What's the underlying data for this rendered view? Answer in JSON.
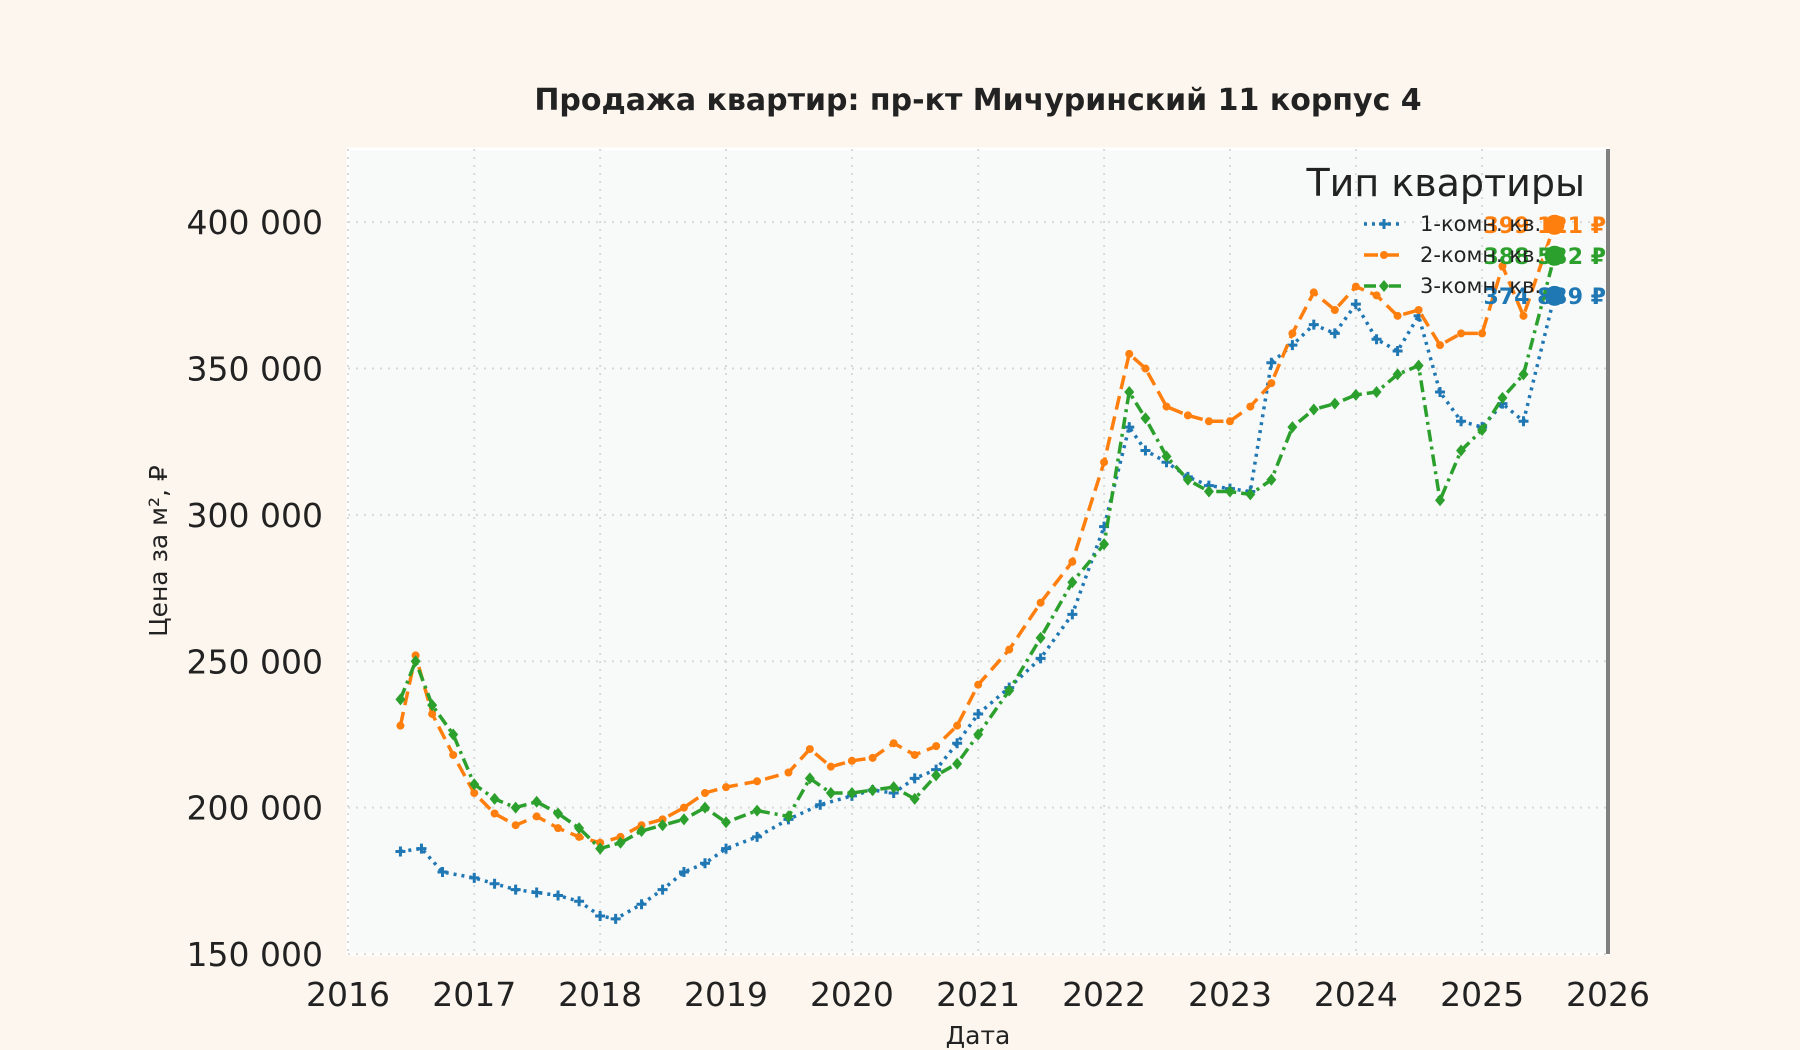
{
  "chart_data": {
    "type": "line",
    "title": "Продажа квартир: пр-кт Мичуринский 11 корпус 4",
    "xlabel": "Дата",
    "ylabel": "Цена за м², ₽",
    "xlim": [
      "2016-01-01",
      "2026-01-01"
    ],
    "ylim": [
      150000,
      425000
    ],
    "x_ticks": [
      "2016",
      "2017",
      "2018",
      "2019",
      "2020",
      "2021",
      "2022",
      "2023",
      "2024",
      "2025",
      "2026"
    ],
    "y_ticks": [
      150000,
      200000,
      250000,
      300000,
      350000,
      400000
    ],
    "y_tick_labels": [
      "150 000",
      "200 000",
      "250 000",
      "300 000",
      "350 000",
      "400 000"
    ],
    "grid": true,
    "legend": {
      "title": "Тип квартиры",
      "placement": "top-right",
      "entries": [
        "1-комн. кв.",
        "2-комн. кв.",
        "3-комн. кв."
      ]
    },
    "vline_date": "2026-01-01",
    "series": [
      {
        "name": "1-комн. кв.",
        "color": "#1f77b4",
        "style": "dotted",
        "marker": "plus",
        "end_label": "374 839 ₽",
        "last_point": {
          "x": "2025-07-30",
          "y": 374839
        },
        "x": [
          "2016-06-01",
          "2016-08-01",
          "2016-10-01",
          "2017-01-01",
          "2017-03-01",
          "2017-05-01",
          "2017-07-01",
          "2017-09-01",
          "2017-11-01",
          "2018-01-01",
          "2018-02-15",
          "2018-05-01",
          "2018-07-01",
          "2018-09-01",
          "2018-11-01",
          "2019-01-01",
          "2019-04-01",
          "2019-07-01",
          "2019-10-01",
          "2020-01-01",
          "2020-03-01",
          "2020-05-01",
          "2020-07-01",
          "2020-09-01",
          "2020-11-01",
          "2021-01-01",
          "2021-04-01",
          "2021-07-01",
          "2021-10-01",
          "2022-01-01",
          "2022-03-15",
          "2022-05-01",
          "2022-07-01",
          "2022-09-01",
          "2022-11-01",
          "2023-01-01",
          "2023-03-01",
          "2023-05-01",
          "2023-07-01",
          "2023-09-01",
          "2023-11-01",
          "2024-01-01",
          "2024-03-01",
          "2024-05-01",
          "2024-07-01",
          "2024-09-01",
          "2024-11-01",
          "2025-01-01",
          "2025-03-01",
          "2025-05-01",
          "2025-07-30"
        ],
        "y": [
          185000,
          186000,
          178000,
          176000,
          174000,
          172000,
          171000,
          170000,
          168000,
          163000,
          162000,
          167000,
          172000,
          178000,
          181000,
          186000,
          190000,
          196000,
          201000,
          204000,
          206000,
          205000,
          210000,
          213000,
          222000,
          232000,
          241000,
          251000,
          266000,
          296000,
          330000,
          322000,
          318000,
          313000,
          310000,
          309000,
          308000,
          352000,
          358000,
          365000,
          362000,
          372000,
          360000,
          356000,
          368000,
          342000,
          332000,
          330000,
          338000,
          332000,
          374839
        ]
      },
      {
        "name": "2-комн. кв.",
        "color": "#ff7f0e",
        "style": "dashed",
        "marker": "dot",
        "end_label": "399 121 ₽",
        "last_point": {
          "x": "2025-07-30",
          "y": 399121
        },
        "x": [
          "2016-06-01",
          "2016-07-15",
          "2016-09-01",
          "2016-11-01",
          "2017-01-01",
          "2017-03-01",
          "2017-05-01",
          "2017-07-01",
          "2017-09-01",
          "2017-11-01",
          "2018-01-01",
          "2018-03-01",
          "2018-05-01",
          "2018-07-01",
          "2018-09-01",
          "2018-11-01",
          "2019-01-01",
          "2019-04-01",
          "2019-07-01",
          "2019-09-01",
          "2019-11-01",
          "2020-01-01",
          "2020-03-01",
          "2020-05-01",
          "2020-07-01",
          "2020-09-01",
          "2020-11-01",
          "2021-01-01",
          "2021-04-01",
          "2021-07-01",
          "2021-10-01",
          "2022-01-01",
          "2022-03-15",
          "2022-05-01",
          "2022-07-01",
          "2022-09-01",
          "2022-11-01",
          "2023-01-01",
          "2023-03-01",
          "2023-05-01",
          "2023-07-01",
          "2023-09-01",
          "2023-11-01",
          "2024-01-01",
          "2024-03-01",
          "2024-05-01",
          "2024-07-01",
          "2024-09-01",
          "2024-11-01",
          "2025-01-01",
          "2025-03-01",
          "2025-05-01",
          "2025-07-30"
        ],
        "y": [
          228000,
          252000,
          232000,
          218000,
          205000,
          198000,
          194000,
          197000,
          193000,
          190000,
          188000,
          190000,
          194000,
          196000,
          200000,
          205000,
          207000,
          209000,
          212000,
          220000,
          214000,
          216000,
          217000,
          222000,
          218000,
          221000,
          228000,
          242000,
          254000,
          270000,
          284000,
          318000,
          355000,
          350000,
          337000,
          334000,
          332000,
          332000,
          337000,
          345000,
          362000,
          376000,
          370000,
          378000,
          375000,
          368000,
          370000,
          358000,
          362000,
          362000,
          385000,
          368000,
          399121
        ]
      },
      {
        "name": "3-комн. кв.",
        "color": "#2ca02c",
        "style": "dashdot",
        "marker": "diamond",
        "end_label": "388 532 ₽",
        "last_point": {
          "x": "2025-07-30",
          "y": 388532
        },
        "x": [
          "2016-06-01",
          "2016-07-15",
          "2016-09-01",
          "2016-11-01",
          "2017-01-01",
          "2017-03-01",
          "2017-05-01",
          "2017-07-01",
          "2017-09-01",
          "2017-11-01",
          "2018-01-01",
          "2018-03-01",
          "2018-05-01",
          "2018-07-01",
          "2018-09-01",
          "2018-11-01",
          "2019-01-01",
          "2019-04-01",
          "2019-07-01",
          "2019-09-01",
          "2019-11-01",
          "2020-01-01",
          "2020-03-01",
          "2020-05-01",
          "2020-07-01",
          "2020-09-01",
          "2020-11-01",
          "2021-01-01",
          "2021-04-01",
          "2021-07-01",
          "2021-10-01",
          "2022-01-01",
          "2022-03-15",
          "2022-05-01",
          "2022-07-01",
          "2022-09-01",
          "2022-11-01",
          "2023-01-01",
          "2023-03-01",
          "2023-05-01",
          "2023-07-01",
          "2023-09-01",
          "2023-11-01",
          "2024-01-01",
          "2024-03-01",
          "2024-05-01",
          "2024-07-01",
          "2024-09-01",
          "2024-11-01",
          "2025-01-01",
          "2025-03-01",
          "2025-05-01",
          "2025-07-30"
        ],
        "y": [
          237000,
          250000,
          235000,
          225000,
          208000,
          203000,
          200000,
          202000,
          198000,
          193000,
          186000,
          188000,
          192000,
          194000,
          196000,
          200000,
          195000,
          199000,
          197000,
          210000,
          205000,
          205000,
          206000,
          207000,
          203000,
          211000,
          215000,
          225000,
          240000,
          258000,
          277000,
          290000,
          342000,
          333000,
          320000,
          312000,
          308000,
          308000,
          307000,
          312000,
          330000,
          336000,
          338000,
          341000,
          342000,
          348000,
          351000,
          305000,
          322000,
          329000,
          340000,
          348000,
          388532
        ]
      }
    ]
  }
}
